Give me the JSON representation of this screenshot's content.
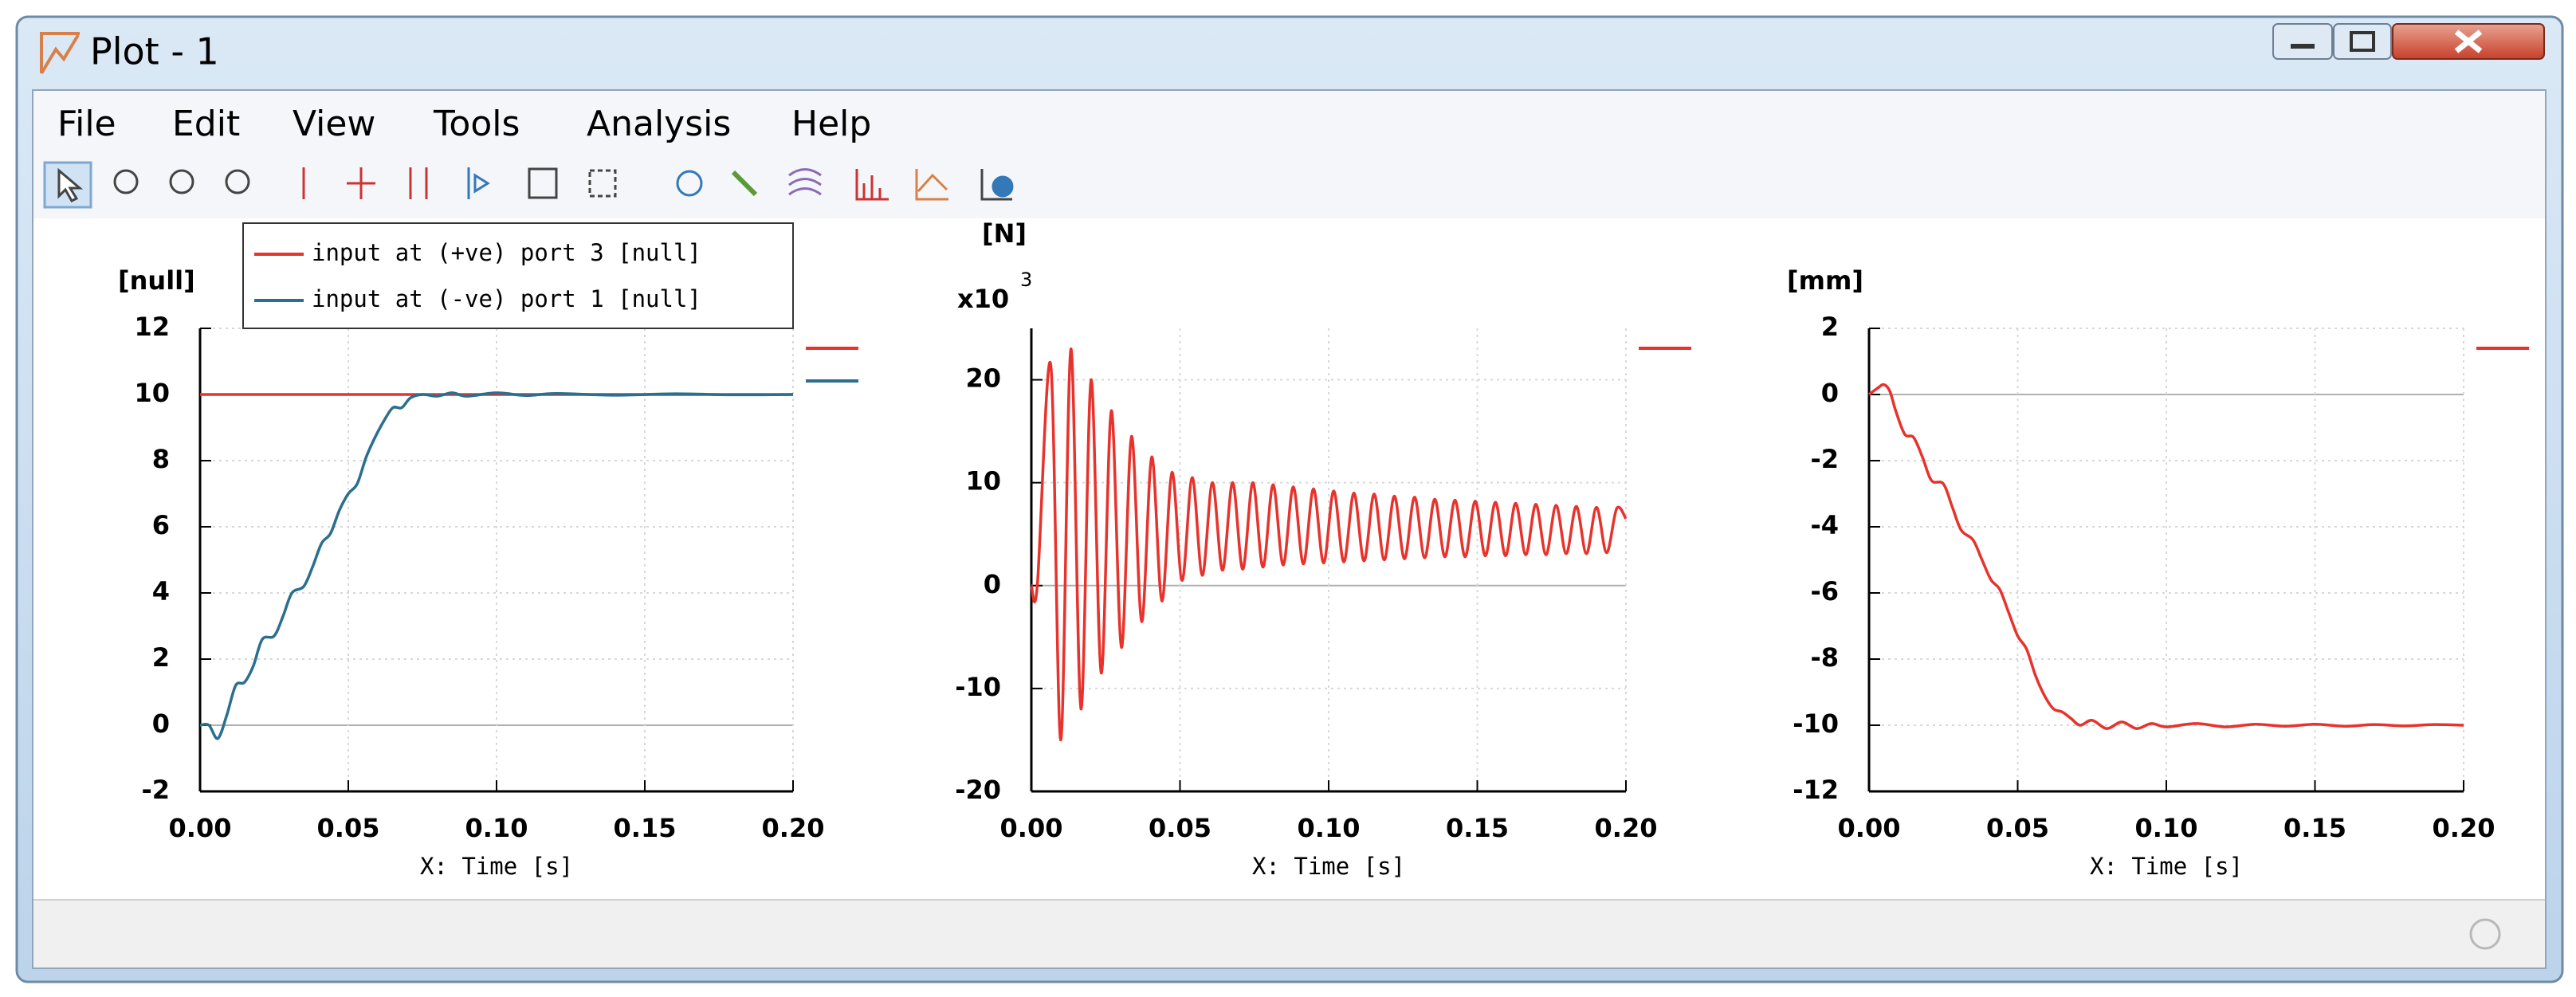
{
  "window": {
    "title": "Plot - 1"
  },
  "menu": [
    "File",
    "Edit",
    "View",
    "Tools",
    "Analysis",
    "Help"
  ],
  "chart_data": [
    {
      "type": "line",
      "y_unit": "[null]",
      "x_label": "X: Time [s]",
      "xlim": [
        0,
        0.2
      ],
      "xticks": [
        {
          "value": 0,
          "label": "0.00"
        },
        {
          "value": 0.05,
          "label": "0.05"
        },
        {
          "value": 0.1,
          "label": "0.10"
        },
        {
          "value": 0.15,
          "label": "0.15"
        },
        {
          "value": 0.2,
          "label": "0.20"
        }
      ],
      "ylim": [
        -2,
        12
      ],
      "yticks": [
        -2,
        0,
        2,
        4,
        6,
        8,
        10,
        12
      ],
      "grid": true,
      "series": [
        {
          "name": "input at (+ve) port 3 [null]",
          "color": "#e8322c",
          "x": [
            0,
            0.2
          ],
          "values": [
            10,
            10
          ]
        },
        {
          "name": "input at (-ve) port 1 [null]",
          "color": "#2b6f8f",
          "x": [
            0,
            0.003,
            0.006,
            0.009,
            0.012,
            0.015,
            0.018,
            0.021,
            0.025,
            0.028,
            0.031,
            0.035,
            0.038,
            0.041,
            0.044,
            0.047,
            0.05,
            0.053,
            0.056,
            0.059,
            0.062,
            0.065,
            0.068,
            0.071,
            0.075,
            0.08,
            0.085,
            0.09,
            0.1,
            0.11,
            0.12,
            0.14,
            0.16,
            0.18,
            0.2
          ],
          "values": [
            0,
            0,
            -0.4,
            0.3,
            1.2,
            1.3,
            1.8,
            2.6,
            2.7,
            3.3,
            4,
            4.2,
            4.8,
            5.5,
            5.8,
            6.5,
            7,
            7.3,
            8.1,
            8.7,
            9.2,
            9.6,
            9.6,
            9.9,
            10,
            9.95,
            10.05,
            9.95,
            10.05,
            9.97,
            10.03,
            9.98,
            10.02,
            9.99,
            10
          ]
        }
      ]
    },
    {
      "type": "line",
      "y_unit": "[N]",
      "y_multiplier": "x10",
      "y_exponent": "3",
      "x_label": "X: Time [s]",
      "xlim": [
        0,
        0.2
      ],
      "xticks": [
        {
          "value": 0,
          "label": "0.00"
        },
        {
          "value": 0.05,
          "label": "0.05"
        },
        {
          "value": 0.1,
          "label": "0.10"
        },
        {
          "value": 0.15,
          "label": "0.15"
        },
        {
          "value": 0.2,
          "label": "0.20"
        }
      ],
      "ylim": [
        -20,
        25
      ],
      "yticks": [
        -20,
        -10,
        0,
        10,
        20
      ],
      "grid": true,
      "series": [
        {
          "color": "#e8322c",
          "x": [
            0,
            0.002,
            0.0065,
            0.0099,
            0.0133,
            0.0167,
            0.0201,
            0.0235,
            0.0269,
            0.0303,
            0.0337,
            0.0371,
            0.0405,
            0.0439,
            0.0473,
            0.0507,
            0.0541,
            0.0575,
            0.0609,
            0.0643,
            0.0677,
            0.0711,
            0.0745,
            0.0779,
            0.0813,
            0.0847,
            0.0881,
            0.0915,
            0.0949,
            0.0983,
            0.1017,
            0.1051,
            0.1085,
            0.1119,
            0.1153,
            0.1187,
            0.1221,
            0.1255,
            0.1289,
            0.1323,
            0.1357,
            0.1391,
            0.1425,
            0.1459,
            0.1493,
            0.1527,
            0.1561,
            0.1595,
            0.1629,
            0.1663,
            0.1697,
            0.1731,
            0.1765,
            0.1799,
            0.1833,
            0.1867,
            0.1901,
            0.1935,
            0.1969,
            0.2
          ],
          "values": [
            0,
            0,
            21.5,
            -15,
            23,
            -12,
            20,
            -8.5,
            17,
            -6,
            14.5,
            -3.5,
            12.5,
            -1.5,
            11,
            0.5,
            10.5,
            1,
            10,
            1.5,
            10,
            1.6,
            10,
            1.8,
            9.8,
            2,
            9.6,
            2.1,
            9.4,
            2.2,
            9.2,
            2.3,
            9,
            2.4,
            8.9,
            2.5,
            8.7,
            2.6,
            8.6,
            2.7,
            8.4,
            2.8,
            8.3,
            2.8,
            8.2,
            2.9,
            8.1,
            2.9,
            8,
            3,
            7.9,
            3,
            7.8,
            3.1,
            7.7,
            3.1,
            7.6,
            3.2,
            7.5,
            6.5
          ]
        }
      ]
    },
    {
      "type": "line",
      "y_unit": "[mm]",
      "x_label": "X: Time [s]",
      "xlim": [
        0,
        0.2
      ],
      "xticks": [
        {
          "value": 0,
          "label": "0.00"
        },
        {
          "value": 0.05,
          "label": "0.05"
        },
        {
          "value": 0.1,
          "label": "0.10"
        },
        {
          "value": 0.15,
          "label": "0.15"
        },
        {
          "value": 0.2,
          "label": "0.20"
        }
      ],
      "ylim": [
        -12,
        2
      ],
      "yticks": [
        -12,
        -10,
        -8,
        -6,
        -4,
        -2,
        0,
        2
      ],
      "grid": true,
      "series": [
        {
          "color": "#e8322c",
          "x": [
            0,
            0.003,
            0.005,
            0.007,
            0.009,
            0.012,
            0.015,
            0.018,
            0.021,
            0.025,
            0.028,
            0.031,
            0.035,
            0.038,
            0.041,
            0.044,
            0.047,
            0.05,
            0.053,
            0.056,
            0.059,
            0.062,
            0.065,
            0.068,
            0.071,
            0.075,
            0.08,
            0.085,
            0.09,
            0.095,
            0.1,
            0.11,
            0.12,
            0.13,
            0.14,
            0.15,
            0.16,
            0.17,
            0.18,
            0.19,
            0.2
          ],
          "values": [
            0,
            0.2,
            0.3,
            0.1,
            -0.5,
            -1.2,
            -1.3,
            -1.9,
            -2.6,
            -2.7,
            -3.4,
            -4.1,
            -4.4,
            -5,
            -5.6,
            -5.9,
            -6.6,
            -7.3,
            -7.7,
            -8.5,
            -9.1,
            -9.5,
            -9.6,
            -9.8,
            -10,
            -9.85,
            -10.1,
            -9.9,
            -10.1,
            -9.95,
            -10.05,
            -9.95,
            -10.05,
            -9.97,
            -10.03,
            -9.97,
            -10.03,
            -9.98,
            -10.02,
            -9.98,
            -10
          ]
        }
      ]
    }
  ]
}
